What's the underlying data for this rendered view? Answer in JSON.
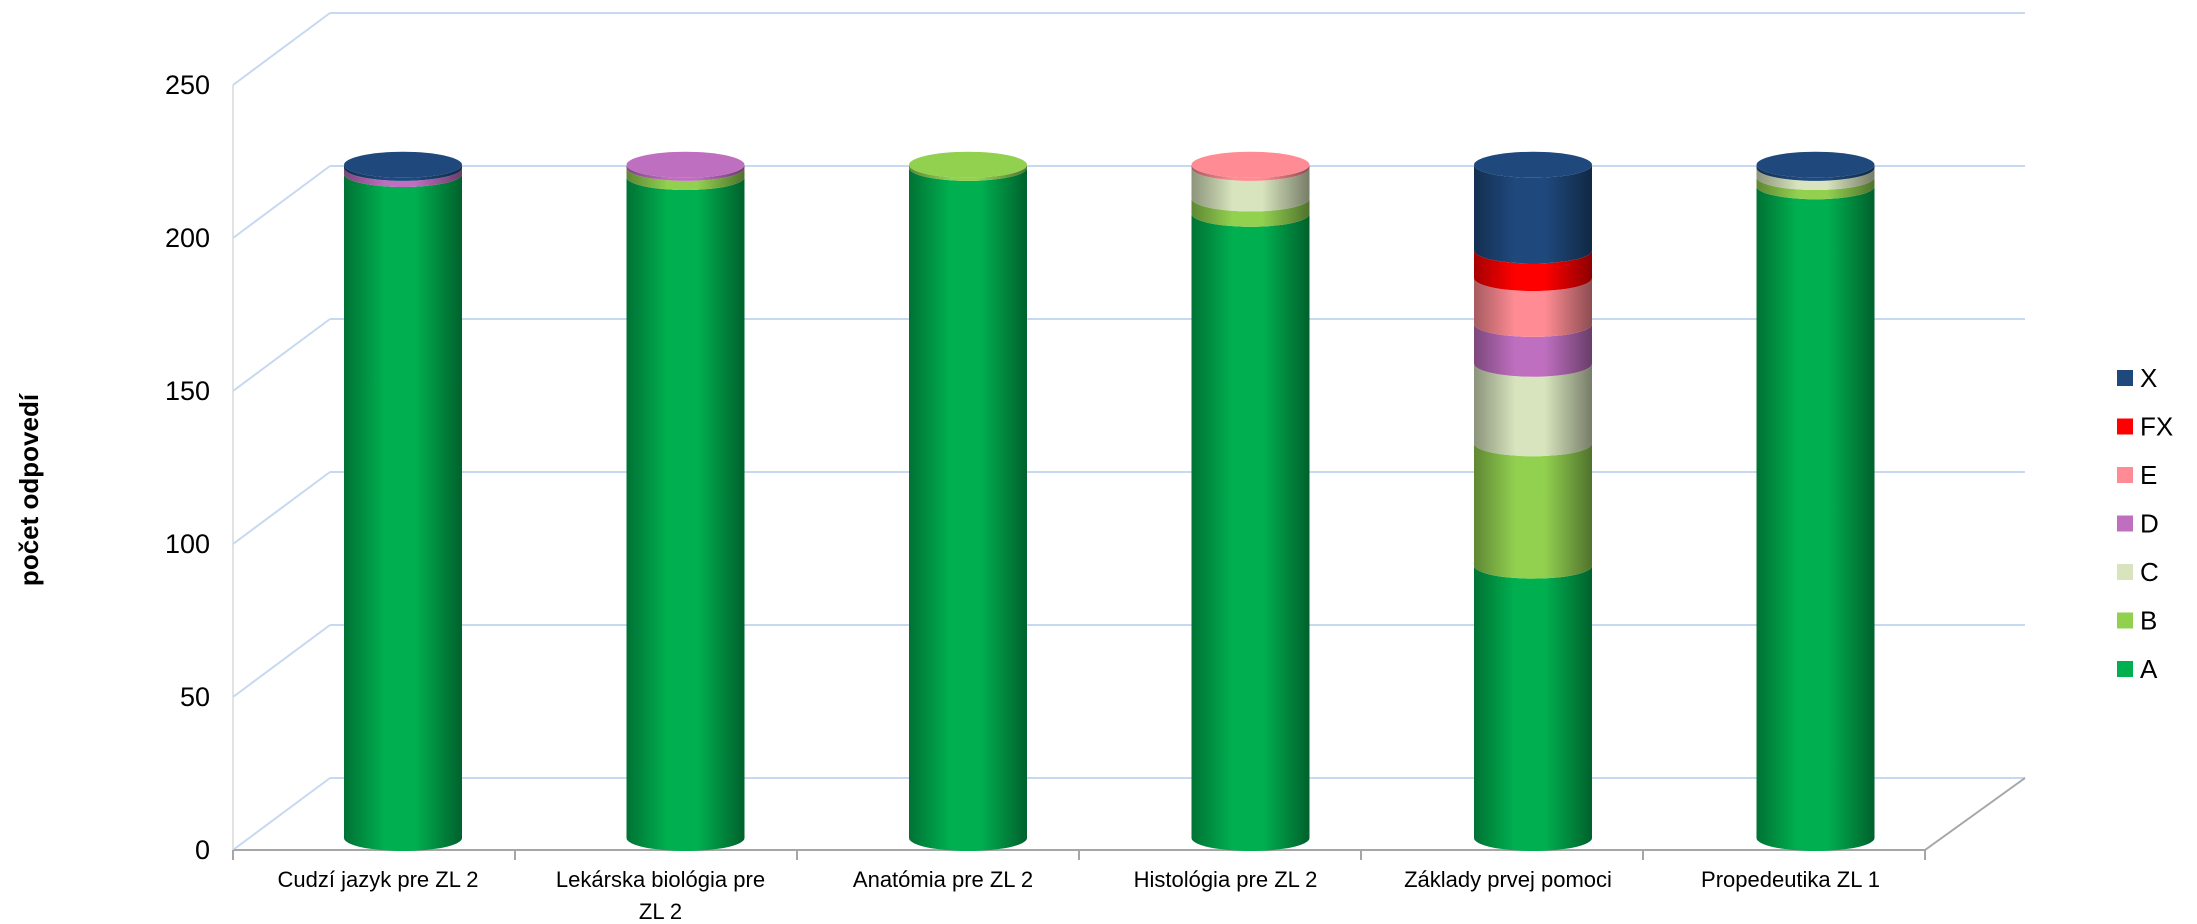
{
  "chart_data": {
    "type": "bar",
    "variant": "stacked-3d-cylinder",
    "title": "",
    "xlabel": "",
    "ylabel": "počet odpovedí",
    "ylim": [
      0,
      250
    ],
    "yticks": [
      0,
      50,
      100,
      150,
      200,
      250
    ],
    "grid": true,
    "legend_position": "right",
    "categories": [
      [
        "Cudzí jazyk pre ZL 2"
      ],
      [
        "Lekárska biológia pre",
        "ZL 2"
      ],
      [
        "Anatómia pre ZL 2"
      ],
      [
        "Histológia pre ZL 2"
      ],
      [
        "Základy prvej pomoci"
      ],
      [
        "Propedeutika ZL 1"
      ]
    ],
    "series": [
      {
        "name": "A",
        "color": "#00b050",
        "values": [
          217,
          216,
          219,
          204,
          89,
          213
        ]
      },
      {
        "name": "B",
        "color": "#92d050",
        "values": [
          0,
          3,
          1,
          5,
          40,
          3
        ]
      },
      {
        "name": "C",
        "color": "#d7e4bd",
        "values": [
          0,
          0,
          0,
          10,
          26,
          3
        ]
      },
      {
        "name": "D",
        "color": "#bf6fbf",
        "values": [
          2,
          1,
          0,
          0,
          13,
          0
        ]
      },
      {
        "name": "E",
        "color": "#ff8c94",
        "values": [
          0,
          0,
          0,
          1,
          15,
          0
        ]
      },
      {
        "name": "FX",
        "color": "#ff0000",
        "values": [
          0,
          0,
          0,
          0,
          9,
          0
        ]
      },
      {
        "name": "X",
        "color": "#1f497d",
        "values": [
          1,
          0,
          0,
          0,
          28,
          1
        ]
      }
    ]
  }
}
